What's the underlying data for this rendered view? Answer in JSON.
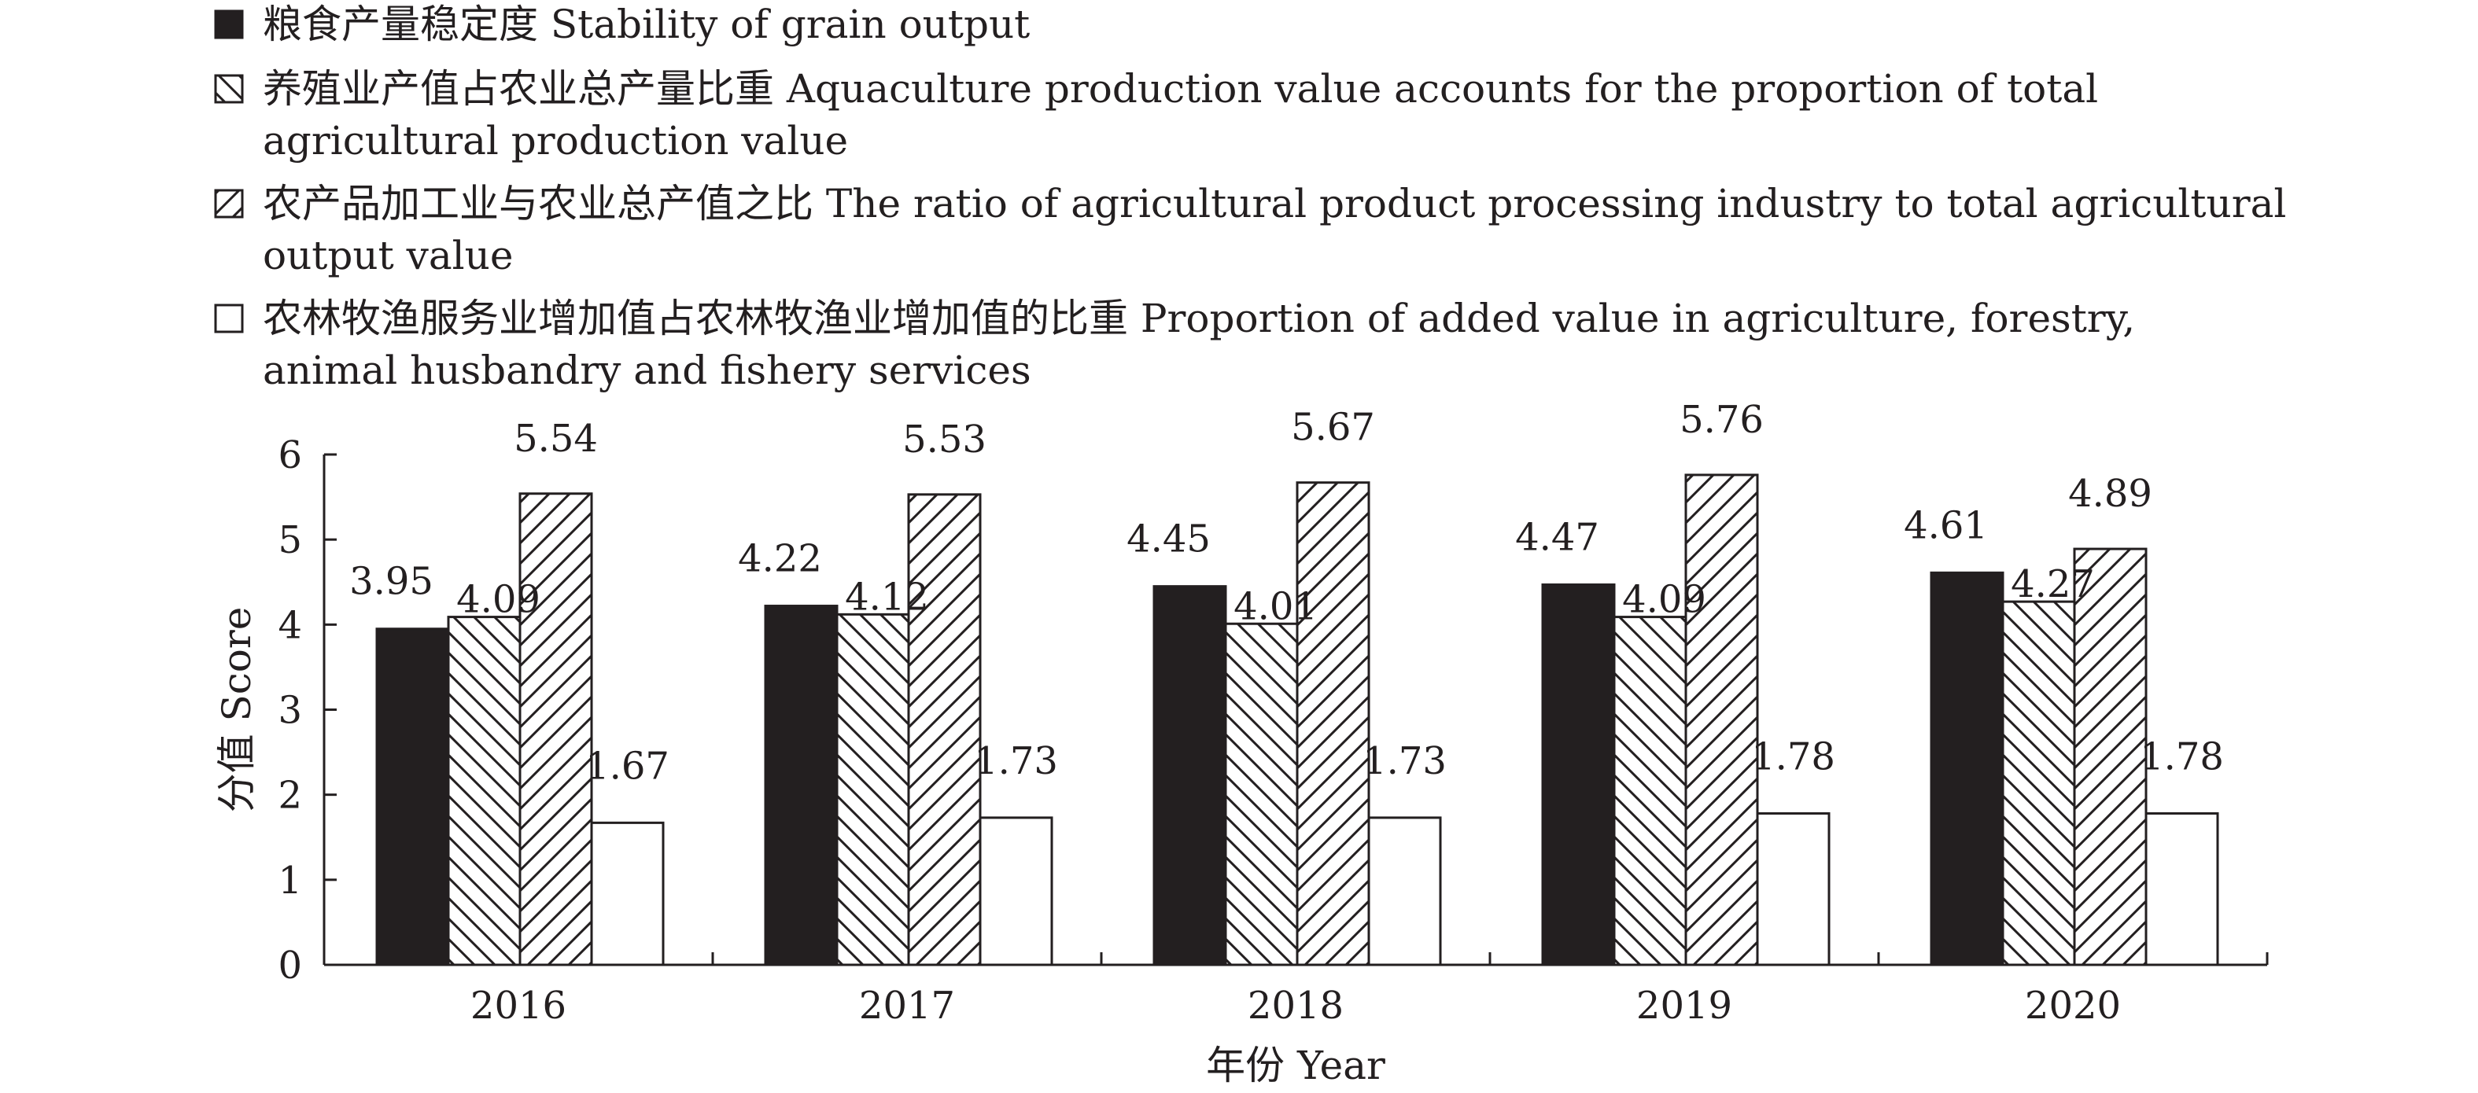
{
  "chart_data": {
    "type": "bar",
    "categories": [
      "2016",
      "2017",
      "2018",
      "2019",
      "2020"
    ],
    "series": [
      {
        "name": "粮食产量稳定度 Stability of grain output",
        "name_lines": [
          "粮食产量稳定度 Stability of grain output"
        ],
        "pattern": "solid",
        "values": [
          3.95,
          4.22,
          4.45,
          4.47,
          4.61
        ],
        "labels": [
          "3.95",
          "4.22",
          "4.45",
          "4.47",
          "4.61"
        ]
      },
      {
        "name": "养殖业产值占农业总产量比重 Aquaculture production value accounts for the proportion of total agricultural production value",
        "name_lines": [
          "养殖业产值占农业总产量比重 Aquaculture production value accounts for the proportion of total",
          "agricultural production value"
        ],
        "pattern": "backslash-hatch",
        "values": [
          4.09,
          4.12,
          4.01,
          4.09,
          4.27
        ],
        "labels": [
          "4.09",
          "4.12",
          "4.01",
          "4.09",
          "4.27"
        ]
      },
      {
        "name": "农产品加工业与农业总产值之比 The ratio of agricultural product processing industry to total agricultural output value",
        "name_lines": [
          "农产品加工业与农业总产值之比 The ratio of agricultural product processing industry to total agricultural",
          "output value"
        ],
        "pattern": "slash-hatch",
        "values": [
          5.54,
          5.53,
          5.67,
          5.76,
          4.89
        ],
        "labels": [
          "5.54",
          "5.53",
          "5.67",
          "5.76",
          "4.89"
        ]
      },
      {
        "name": "农林牧渔服务业增加值占农林牧渔业增加值的比重 Proportion of added value in agriculture, forestry, animal husbandry and fishery services",
        "name_lines": [
          "农林牧渔服务业增加值占农林牧渔业增加值的比重 Proportion of added value in agriculture, forestry,",
          "animal husbandry and fishery services"
        ],
        "pattern": "white",
        "values": [
          1.67,
          1.73,
          1.73,
          1.78,
          1.78
        ],
        "labels": [
          "1.67",
          "1.73",
          "1.73",
          "1.78",
          "1.78"
        ]
      }
    ],
    "ylim": [
      0,
      6
    ],
    "yticks": [
      0,
      1,
      2,
      3,
      4,
      5,
      6
    ],
    "xlabel": "年份 Year",
    "ylabel": "分值 Score",
    "title": "",
    "legend_position": "top-left",
    "grid": false,
    "colors": {
      "ink": "#231f20",
      "background": "#ffffff"
    }
  }
}
